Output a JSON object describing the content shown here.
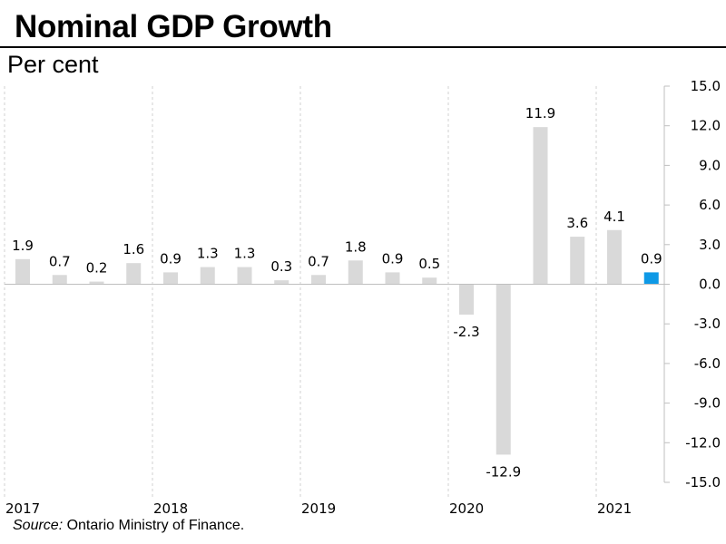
{
  "chart_data": {
    "type": "bar",
    "title": "Nominal GDP Growth",
    "ylabel": "Per cent",
    "xlabel": "",
    "ylim": [
      -15.0,
      15.0
    ],
    "yticks": [
      "15.0",
      "12.0",
      "9.0",
      "6.0",
      "3.0",
      "0.0",
      "-3.0",
      "-6.0",
      "-9.0",
      "-12.0",
      "-15.0"
    ],
    "years": [
      "2017",
      "2018",
      "2019",
      "2020",
      "2021"
    ],
    "categories": [
      "2017 Q1",
      "2017 Q2",
      "2017 Q3",
      "2017 Q4",
      "2018 Q1",
      "2018 Q2",
      "2018 Q3",
      "2018 Q4",
      "2019 Q1",
      "2019 Q2",
      "2019 Q3",
      "2019 Q4",
      "2020 Q1",
      "2020 Q2",
      "2020 Q3",
      "2020 Q4",
      "2021 Q1",
      "2021 Q2"
    ],
    "values": [
      1.9,
      0.7,
      0.2,
      1.6,
      0.9,
      1.3,
      1.3,
      0.3,
      0.7,
      1.8,
      0.9,
      0.5,
      -2.3,
      -12.9,
      11.9,
      3.6,
      4.1,
      0.9
    ],
    "labels": [
      "1.9",
      "0.7",
      "0.2",
      "1.6",
      "0.9",
      "1.3",
      "1.3",
      "0.3",
      "0.7",
      "1.8",
      "0.9",
      "0.5",
      "-2.3",
      "-12.9",
      "11.9",
      "3.6",
      "4.1",
      "0.9"
    ],
    "highlight_index": 17,
    "grid": "vertical dashed at year boundaries",
    "source_label": "Source:",
    "source_text": " Ontario Ministry of Finance.",
    "colors": {
      "bar": "#d9d9d9",
      "highlight": "#0e99e6",
      "axis": "#bfbfbf",
      "grid": "#d0d0d0"
    }
  }
}
